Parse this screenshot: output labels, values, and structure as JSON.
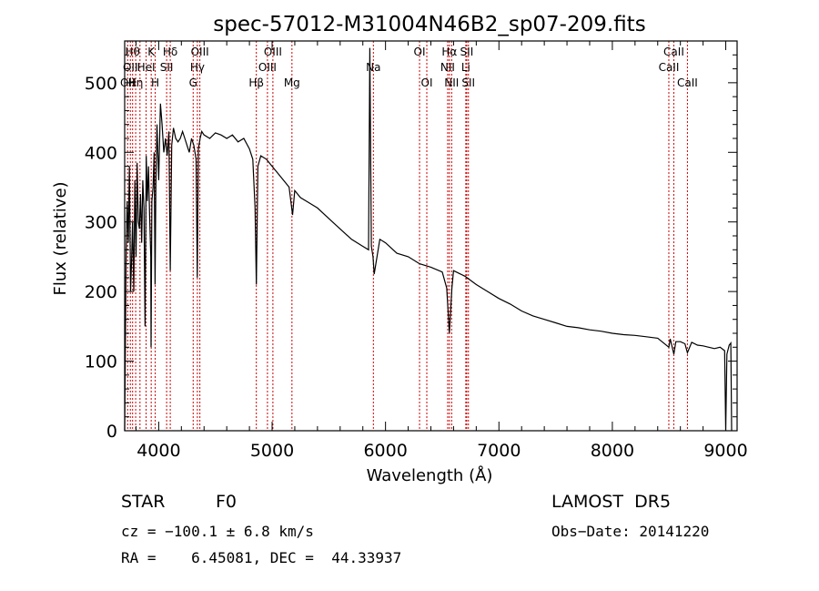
{
  "chart_data": {
    "type": "line",
    "title": "spec-57012-M31004N46B2_sp07-209.fits",
    "xlabel": "Wavelength (Å)",
    "ylabel": "Flux (relative)",
    "xlim": [
      3700,
      9100
    ],
    "ylim": [
      0,
      560
    ],
    "xticks": [
      4000,
      5000,
      6000,
      7000,
      8000,
      9000
    ],
    "yticks": [
      0,
      100,
      200,
      300,
      400,
      500
    ],
    "grid": false,
    "line_color": "#000000",
    "marker_color": "#cc0000",
    "series": [
      {
        "x": [
          3700,
          3712,
          3722,
          3732,
          3742,
          3752,
          3760,
          3770,
          3780,
          3790,
          3800,
          3810,
          3820,
          3830,
          3840,
          3850,
          3860,
          3870,
          3880,
          3890,
          3900,
          3910,
          3920,
          3930,
          3933,
          3940,
          3950,
          3960,
          3968,
          3975,
          3985,
          4000,
          4015,
          4030,
          4045,
          4060,
          4075,
          4090,
          4102,
          4115,
          4130,
          4150,
          4170,
          4190,
          4210,
          4230,
          4250,
          4270,
          4290,
          4310,
          4330,
          4340,
          4350,
          4365,
          4380,
          4400,
          4450,
          4500,
          4550,
          4600,
          4650,
          4700,
          4750,
          4800,
          4830,
          4850,
          4861,
          4875,
          4900,
          4950,
          5000,
          5050,
          5100,
          5150,
          5180,
          5200,
          5250,
          5300,
          5400,
          5500,
          5600,
          5700,
          5800,
          5850,
          5862,
          5875,
          5890,
          5900,
          5950,
          6000,
          6100,
          6200,
          6300,
          6400,
          6500,
          6540,
          6563,
          6585,
          6600,
          6650,
          6700,
          6800,
          6900,
          7000,
          7100,
          7200,
          7300,
          7400,
          7500,
          7600,
          7700,
          7800,
          7900,
          8000,
          8100,
          8200,
          8300,
          8400,
          8498,
          8510,
          8542,
          8560,
          8600,
          8640,
          8662,
          8700,
          8750,
          8800,
          8850,
          8900,
          8950,
          8990,
          9000,
          9010,
          9030,
          9045,
          9052
        ],
        "y": [
          0,
          240,
          330,
          270,
          380,
          200,
          240,
          300,
          200,
          360,
          250,
          385,
          300,
          290,
          340,
          270,
          360,
          320,
          150,
          395,
          330,
          380,
          310,
          250,
          120,
          330,
          350,
          400,
          210,
          355,
          440,
          360,
          470,
          440,
          400,
          420,
          395,
          430,
          230,
          410,
          435,
          420,
          415,
          420,
          430,
          420,
          410,
          400,
          420,
          410,
          390,
          220,
          405,
          420,
          430,
          425,
          420,
          428,
          425,
          420,
          425,
          415,
          420,
          405,
          390,
          320,
          210,
          380,
          395,
          390,
          380,
          370,
          360,
          350,
          310,
          345,
          335,
          330,
          320,
          305,
          290,
          275,
          265,
          260,
          550,
          265,
          250,
          225,
          275,
          270,
          255,
          250,
          240,
          235,
          228,
          205,
          140,
          205,
          230,
          226,
          222,
          210,
          200,
          190,
          182,
          172,
          165,
          160,
          155,
          150,
          148,
          145,
          143,
          140,
          138,
          137,
          135,
          133,
          120,
          132,
          110,
          128,
          128,
          125,
          112,
          127,
          123,
          122,
          120,
          118,
          120,
          115,
          0,
          110,
          123,
          126,
          0
        ]
      }
    ],
    "line_markers": [
      {
        "x": 3726,
        "label": "OII",
        "row": 2
      },
      {
        "x": 3750,
        "label": "OII",
        "row": 1
      },
      {
        "x": 3770,
        "label": "Hθ",
        "row": 0
      },
      {
        "x": 3797,
        "label": "Hη",
        "row": 2
      },
      {
        "x": 3835,
        "label": "",
        "row": 0
      },
      {
        "x": 3889,
        "label": "HeI",
        "row": 1
      },
      {
        "x": 3934,
        "label": "K",
        "row": 0
      },
      {
        "x": 3969,
        "label": "H",
        "row": 2
      },
      {
        "x": 4070,
        "label": "SII",
        "row": 1
      },
      {
        "x": 4102,
        "label": "Hδ",
        "row": 0
      },
      {
        "x": 4304,
        "label": "G",
        "row": 2
      },
      {
        "x": 4341,
        "label": "Hγ",
        "row": 1
      },
      {
        "x": 4363,
        "label": "OIII",
        "row": 0
      },
      {
        "x": 4861,
        "label": "Hβ",
        "row": 2
      },
      {
        "x": 4959,
        "label": "OIII",
        "row": 1
      },
      {
        "x": 5007,
        "label": "OIII",
        "row": 0
      },
      {
        "x": 5175,
        "label": "Mg",
        "row": 2
      },
      {
        "x": 5893,
        "label": "Na",
        "row": 1
      },
      {
        "x": 6300,
        "label": "OI",
        "row": 0
      },
      {
        "x": 6364,
        "label": "OI",
        "row": 2
      },
      {
        "x": 6548,
        "label": "NII",
        "row": 1
      },
      {
        "x": 6563,
        "label": "Hα",
        "row": 0
      },
      {
        "x": 6583,
        "label": "NII",
        "row": 2
      },
      {
        "x": 6708,
        "label": "Li",
        "row": 1
      },
      {
        "x": 6716,
        "label": "SII",
        "row": 0
      },
      {
        "x": 6731,
        "label": "SII",
        "row": 2
      },
      {
        "x": 8498,
        "label": "CaII",
        "row": 1
      },
      {
        "x": 8542,
        "label": "CaII",
        "row": 0
      },
      {
        "x": 8662,
        "label": "CaII",
        "row": 2
      }
    ]
  },
  "info": {
    "class_label": "STAR",
    "subclass": "F0",
    "survey": "LAMOST  DR5",
    "cz_line": "cz = −100.1 ± 6.8 km/s",
    "obs_date_line": "Obs−Date: 20141220",
    "radec_line": "RA =    6.45081, DEC =  44.33937"
  }
}
